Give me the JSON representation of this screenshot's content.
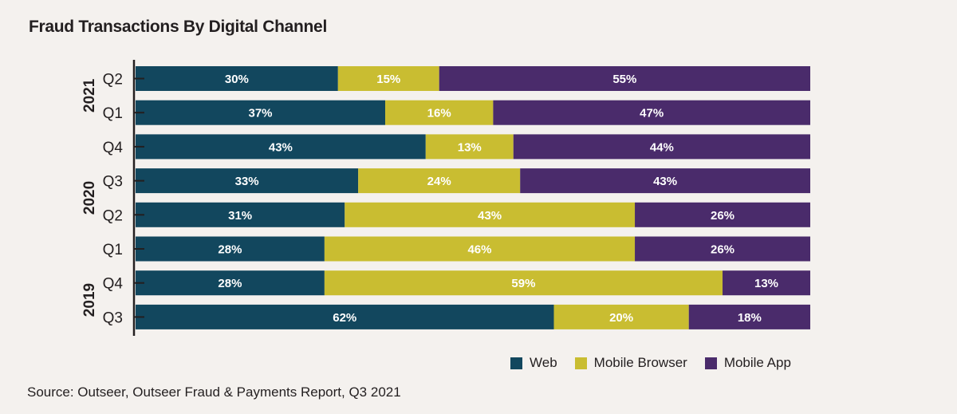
{
  "chart_data": {
    "type": "bar",
    "orientation": "horizontal",
    "stacked": true,
    "normalized": true,
    "title": "Fraud Transactions By Digital Channel",
    "xlabel": "",
    "ylabel": "",
    "xlim": [
      0,
      100
    ],
    "grid": false,
    "legend_position": "bottom-right",
    "categories": [
      "Q2",
      "Q1",
      "Q4",
      "Q3",
      "Q2",
      "Q1",
      "Q4",
      "Q3"
    ],
    "category_groups": [
      {
        "label": "2021",
        "rows": [
          0,
          1
        ]
      },
      {
        "label": "2020",
        "rows": [
          2,
          3,
          4,
          5
        ]
      },
      {
        "label": "2019",
        "rows": [
          6,
          7
        ]
      }
    ],
    "series": [
      {
        "name": "Web",
        "color": "#12475e",
        "values": [
          30,
          37,
          43,
          33,
          31,
          28,
          28,
          62
        ],
        "labels": [
          "30%",
          "37%",
          "43%",
          "33%",
          "31%",
          "28%",
          "28%",
          "62%"
        ]
      },
      {
        "name": "Mobile Browser",
        "color": "#c9bd31",
        "values": [
          15,
          16,
          13,
          24,
          43,
          46,
          59,
          20
        ],
        "labels": [
          "15%",
          "16%",
          "13%",
          "24%",
          "43%",
          "46%",
          "59%",
          "20%"
        ]
      },
      {
        "name": "Mobile App",
        "color": "#4a2b6b",
        "values": [
          55,
          47,
          44,
          43,
          26,
          26,
          13,
          18
        ],
        "labels": [
          "55%",
          "47%",
          "44%",
          "43%",
          "26%",
          "26%",
          "13%",
          "18%"
        ]
      }
    ]
  },
  "source": "Source: Outseer, Outseer Fraud & Payments Report, Q3 2021"
}
